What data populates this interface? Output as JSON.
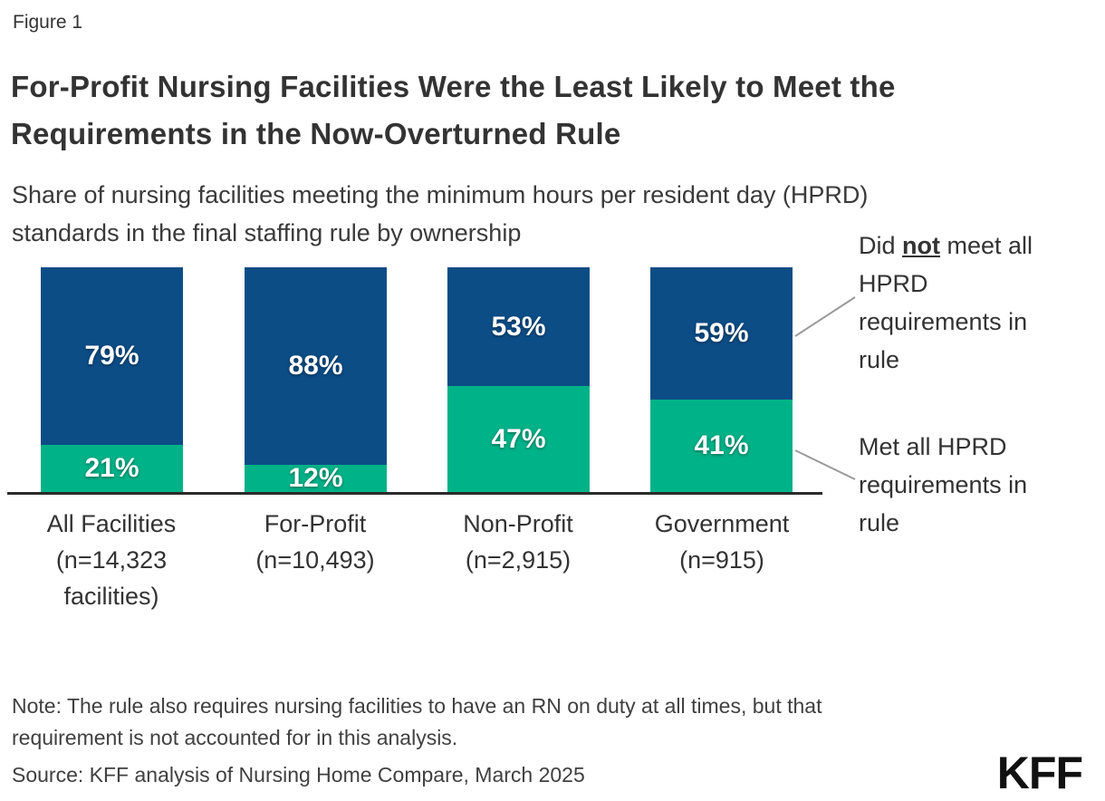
{
  "colors": {
    "not_met_blue": "#0c4d86",
    "met_green": "#00b288",
    "axis_dark": "#2b2b2b",
    "leader_gray": "#9a9a9a",
    "text_dark": "#333333",
    "value_white": "#ffffff",
    "logo_black": "#111111"
  },
  "header": {
    "figure_label": "Figure 1",
    "title_lines": [
      "For-Profit Nursing Facilities Were the Least Likely to Meet the",
      "Requirements in the Now-Overturned Rule"
    ],
    "subtitle_lines": [
      "Share of nursing facilities meeting the minimum hours per resident day (HPRD)",
      "standards in the final staffing rule by ownership"
    ]
  },
  "chart_data": {
    "type": "bar",
    "stacked": true,
    "orientation": "vertical",
    "categories": [
      "All Facilities (n=14,323 facilities)",
      "For-Profit (n=10,493)",
      "Non-Profit (n=2,915)",
      "Government (n=915)"
    ],
    "category_label_lines": [
      [
        "All Facilities",
        "(n=14,323",
        "facilities)"
      ],
      [
        "For-Profit",
        "(n=10,493)"
      ],
      [
        "Non-Profit",
        "(n=2,915)"
      ],
      [
        "Government",
        "(n=915)"
      ]
    ],
    "series": [
      {
        "name": "Did not meet all HPRD requirements in rule",
        "values": [
          79,
          88,
          53,
          59
        ],
        "color": "#0c4d86"
      },
      {
        "name": "Met all HPRD requirements in rule",
        "values": [
          21,
          12,
          47,
          41
        ],
        "color": "#00b288"
      }
    ],
    "value_suffix": "%",
    "ylim": [
      0,
      100
    ],
    "grid": false,
    "legend_position": "right"
  },
  "legend": {
    "not_met": {
      "line1_pre": "Did ",
      "line1_bold": "not",
      "line1_post": " meet all",
      "line2": "HPRD",
      "line3": "requirements in",
      "line4": "rule"
    },
    "met": {
      "lines": [
        "Met all HPRD",
        "requirements in",
        "rule"
      ]
    }
  },
  "footer": {
    "note_lines": [
      "Note: The rule also requires nursing facilities to have an RN on duty at all times, but that",
      "requirement is not accounted for in this analysis."
    ],
    "source": "Source: KFF analysis of Nursing Home Compare, March 2025",
    "logo_text": "KFF"
  }
}
